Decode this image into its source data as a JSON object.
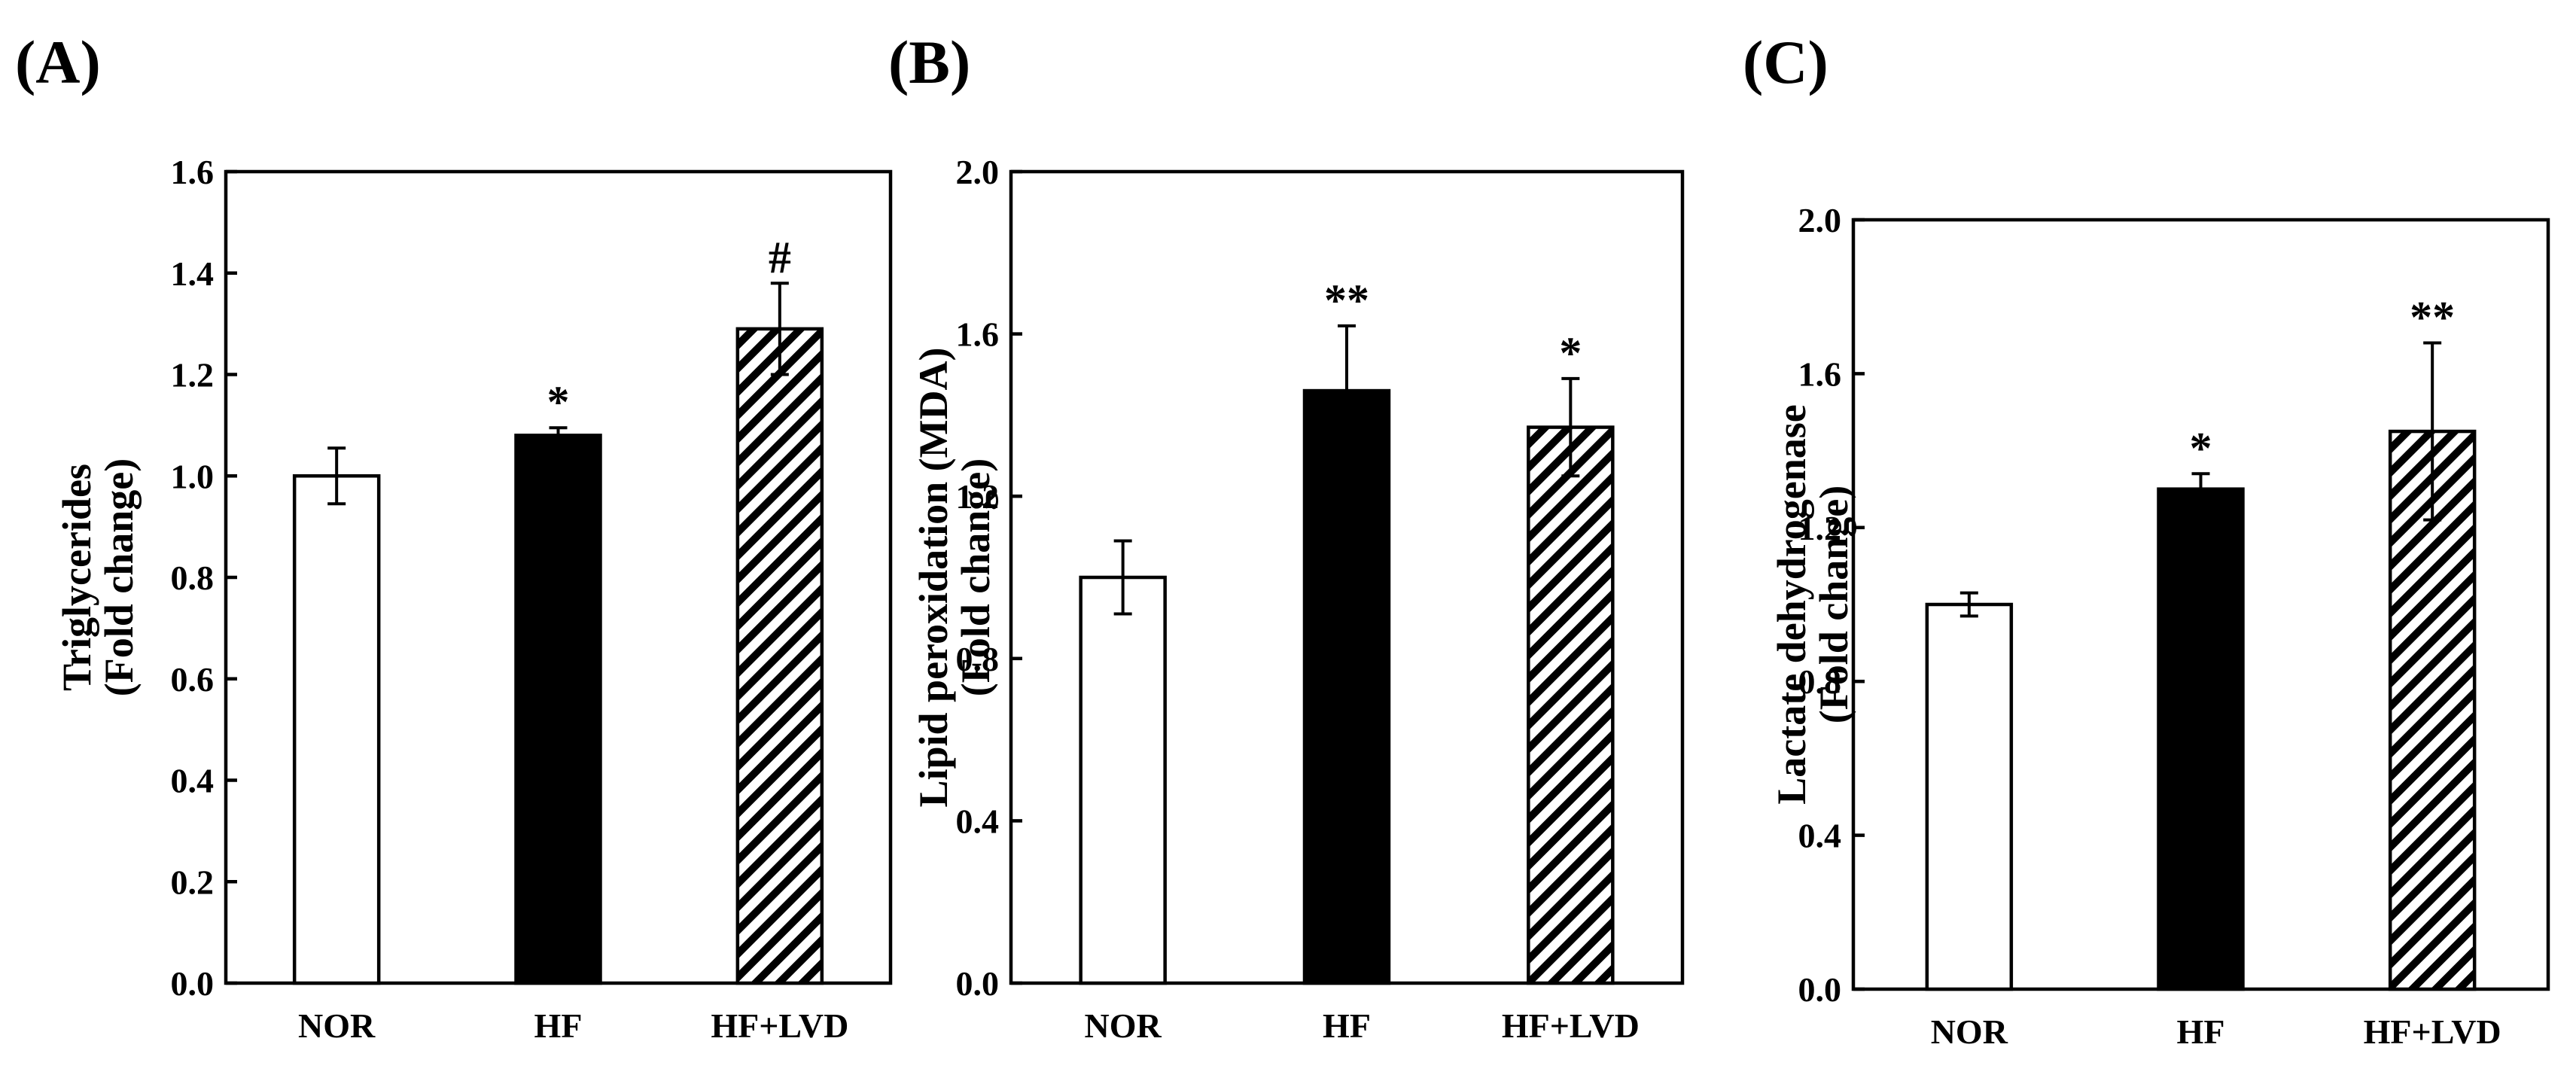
{
  "chart_data": [
    {
      "type": "bar",
      "panel": "(A)",
      "categories": [
        "NOR",
        "HF",
        "HF+LVD"
      ],
      "values": [
        1.0,
        1.08,
        1.29
      ],
      "errors": [
        0.055,
        0.015,
        0.09
      ],
      "significance": [
        "",
        "*",
        "#"
      ],
      "fills": [
        "white",
        "black",
        "hatched"
      ],
      "ylabel_lines": [
        "Triglycerides",
        "(Fold change)"
      ],
      "ylim": [
        0,
        1.6
      ],
      "yticks": [
        0.0,
        0.2,
        0.4,
        0.6,
        0.8,
        1.0,
        1.2,
        1.4,
        1.6
      ],
      "ytick_labels": [
        "0.0",
        "0.2",
        "0.4",
        "0.6",
        "0.8",
        "1.0",
        "1.2",
        "1.4",
        "1.6"
      ]
    },
    {
      "type": "bar",
      "panel": "(B)",
      "categories": [
        "NOR",
        "HF",
        "HF+LVD"
      ],
      "values": [
        1.0,
        1.46,
        1.37
      ],
      "errors": [
        0.09,
        0.16,
        0.12
      ],
      "significance": [
        "",
        "**",
        "*"
      ],
      "fills": [
        "white",
        "black",
        "hatched"
      ],
      "ylabel_lines": [
        "Lipid peroxidation (MDA)",
        "(Fold change)"
      ],
      "ylim": [
        0,
        2.0
      ],
      "yticks": [
        0.0,
        0.4,
        0.8,
        1.2,
        1.6,
        2.0
      ],
      "ytick_labels": [
        "0.0",
        "0.4",
        "0.8",
        "1.2",
        "1.6",
        "2.0"
      ]
    },
    {
      "type": "bar",
      "panel": "(C)",
      "categories": [
        "NOR",
        "HF",
        "HF+LVD"
      ],
      "values": [
        1.0,
        1.3,
        1.45
      ],
      "errors": [
        0.03,
        0.04,
        0.23
      ],
      "significance": [
        "",
        "*",
        "**"
      ],
      "fills": [
        "white",
        "black",
        "hatched"
      ],
      "ylabel_lines": [
        "Lactate dehydrogenase",
        "(Fold change)"
      ],
      "ylim": [
        0,
        2.0
      ],
      "yticks": [
        0.0,
        0.4,
        0.8,
        1.2,
        1.6,
        2.0
      ],
      "ytick_labels": [
        "0.0",
        "0.4",
        "0.8",
        "1.2",
        "1.6",
        "2.0"
      ]
    }
  ]
}
